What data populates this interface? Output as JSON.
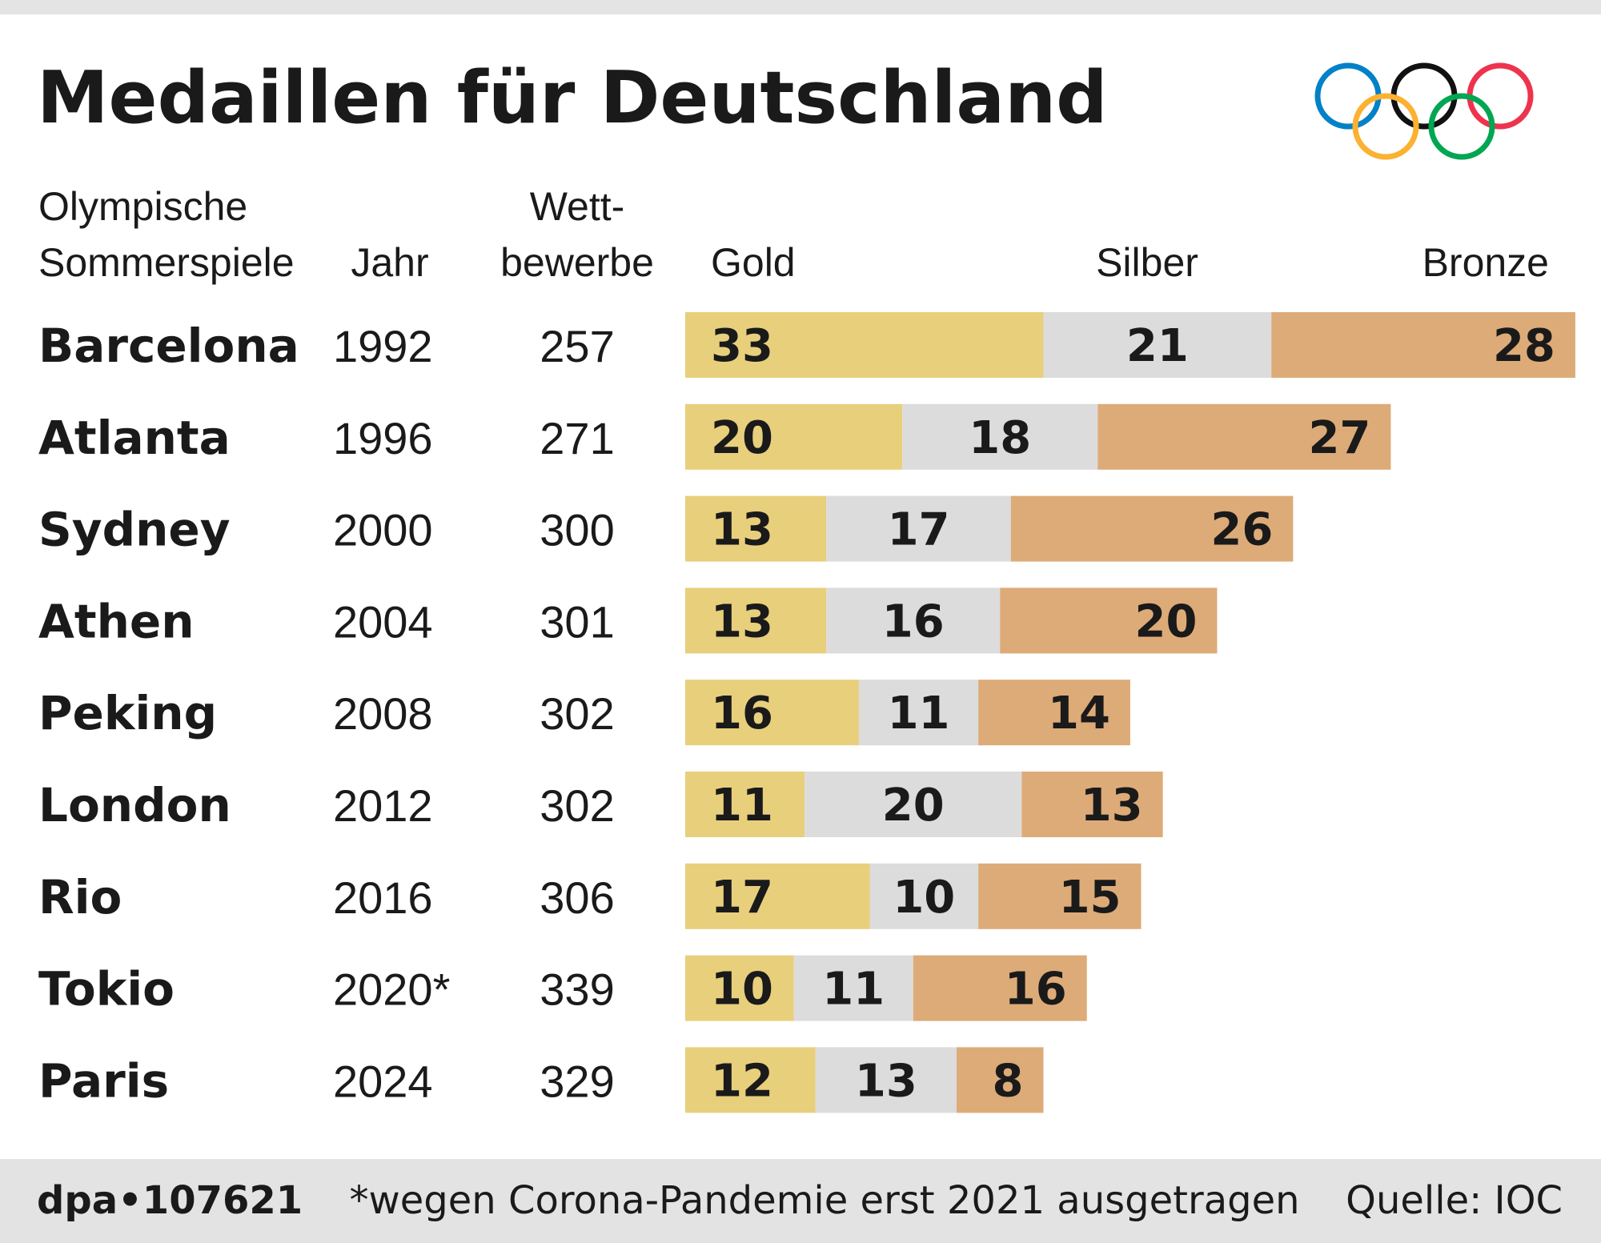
{
  "chart_data": {
    "type": "bar",
    "stacked": true,
    "orientation": "horizontal",
    "title": "Medaillen für Deutschland",
    "headers": {
      "name": [
        "Olympische",
        "Sommerspiele"
      ],
      "year": "Jahr",
      "events": [
        "Wett-",
        "bewerbe"
      ]
    },
    "categories": [
      "Barcelona",
      "Atlanta",
      "Sydney",
      "Athen",
      "Peking",
      "London",
      "Rio",
      "Tokio",
      "Paris"
    ],
    "years": [
      "1992",
      "1996",
      "2000",
      "2004",
      "2008",
      "2012",
      "2016",
      "2020*",
      "2024"
    ],
    "events": [
      257,
      271,
      300,
      301,
      302,
      302,
      306,
      339,
      329
    ],
    "series": [
      {
        "name": "Gold",
        "color": "#e8cf7c",
        "values": [
          33,
          20,
          13,
          13,
          16,
          11,
          17,
          10,
          12
        ]
      },
      {
        "name": "Silber",
        "color": "#dcdcdc",
        "values": [
          21,
          18,
          17,
          16,
          11,
          20,
          10,
          11,
          13
        ]
      },
      {
        "name": "Bronze",
        "color": "#ddab78",
        "values": [
          28,
          27,
          26,
          20,
          14,
          13,
          15,
          16,
          8
        ]
      }
    ],
    "footer": {
      "source_id": "dpa•107621",
      "note": "*wegen Corona-Pandemie erst 2021 ausgetragen",
      "source": "Quelle: IOC"
    }
  }
}
